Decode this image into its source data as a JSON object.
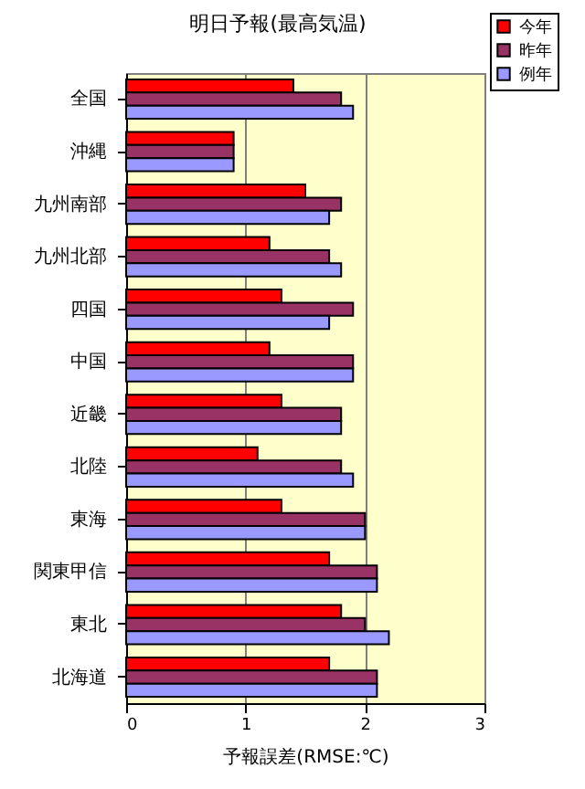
{
  "chart_data": {
    "type": "bar",
    "orientation": "horizontal",
    "title": "明日予報(最高気温)",
    "xlabel": "予報誤差(RMSE:℃)",
    "categories": [
      "全国",
      "沖縄",
      "九州南部",
      "九州北部",
      "四国",
      "中国",
      "近畿",
      "北陸",
      "東海",
      "関東甲信",
      "東北",
      "北海道"
    ],
    "series": [
      {
        "name": "今年",
        "color": "#ff0000",
        "values": [
          1.4,
          0.9,
          1.5,
          1.2,
          1.3,
          1.2,
          1.3,
          1.1,
          1.3,
          1.7,
          1.8,
          1.7
        ]
      },
      {
        "name": "昨年",
        "color": "#993366",
        "values": [
          1.8,
          0.9,
          1.8,
          1.7,
          1.9,
          1.9,
          1.8,
          1.8,
          2.0,
          2.1,
          2.0,
          2.1
        ]
      },
      {
        "name": "例年",
        "color": "#9999ff",
        "values": [
          1.9,
          0.9,
          1.7,
          1.8,
          1.7,
          1.9,
          1.8,
          1.9,
          2.0,
          2.1,
          2.2,
          2.1
        ]
      }
    ],
    "xlim": [
      0,
      3
    ],
    "xticks": [
      0,
      1,
      2,
      3
    ],
    "grid": "x",
    "legend": "top right"
  }
}
